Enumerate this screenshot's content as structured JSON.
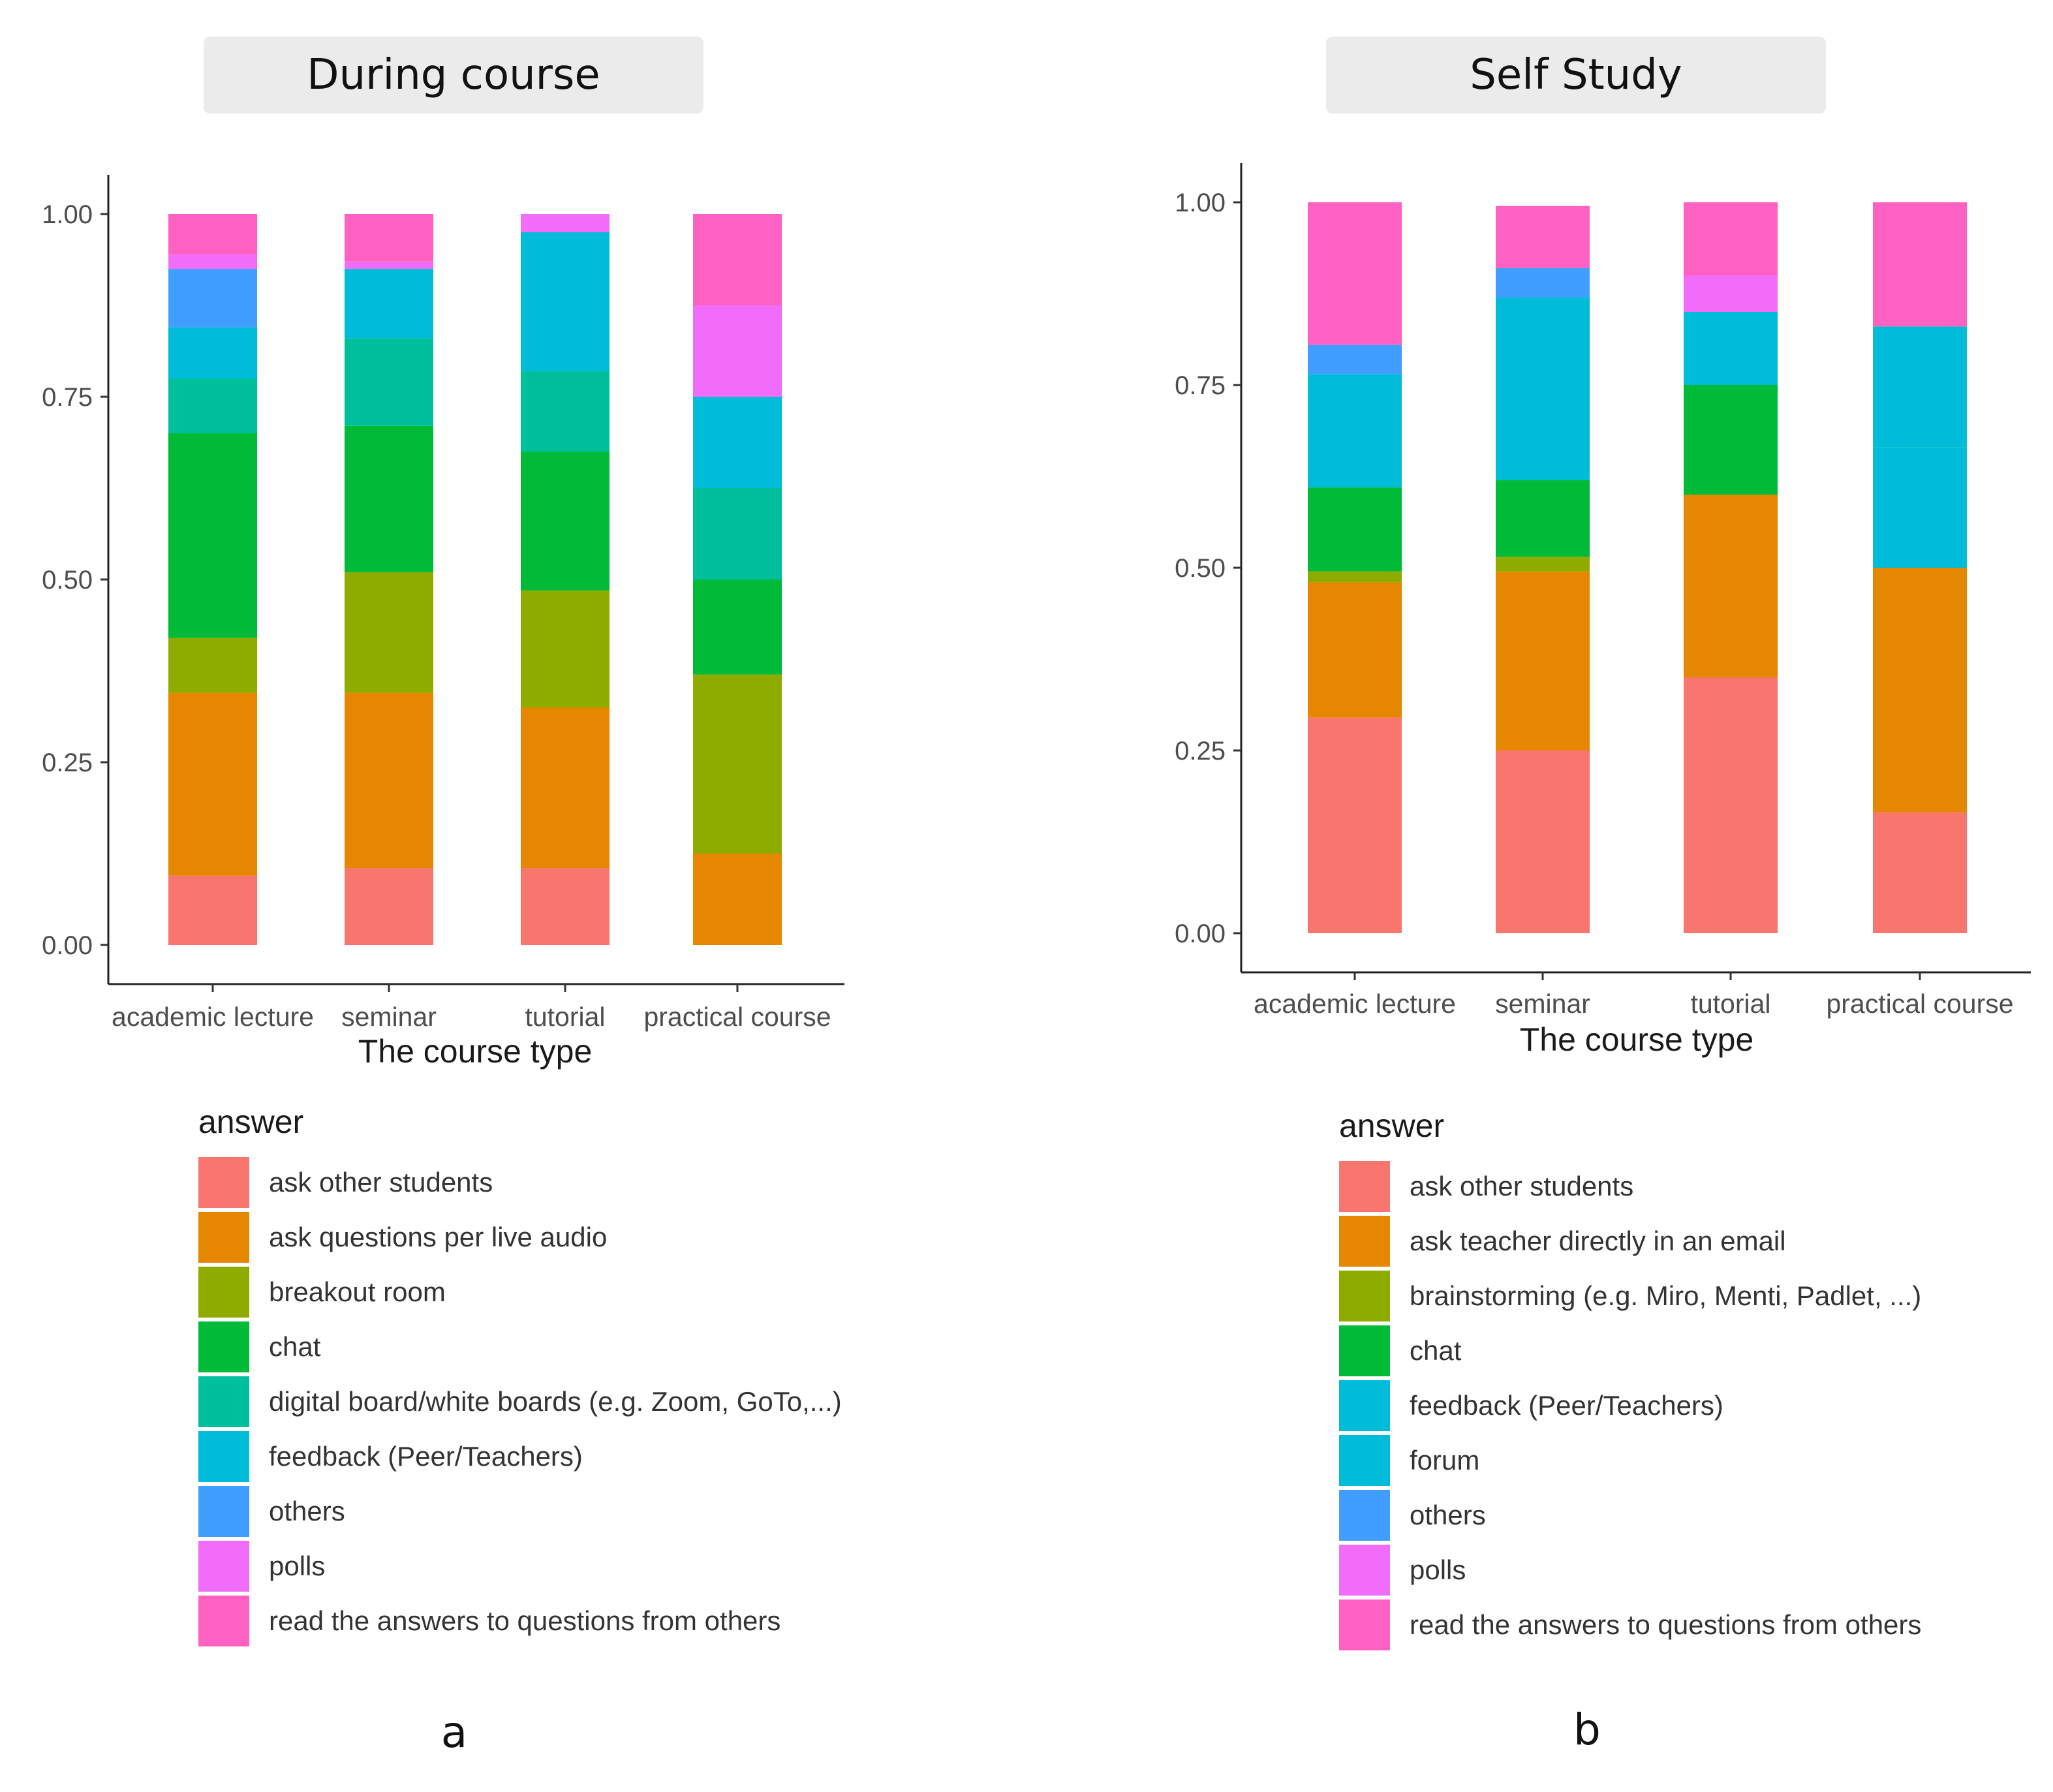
{
  "colors": {
    "ask other students": "#F8766D",
    "ask questions per live audio": "#E58700",
    "ask teacher directly in an email": "#E58700",
    "breakout room": "#8EAB00",
    "brainstorming (e.g. Miro, Menti, Padlet, ...)": "#8EAB00",
    "chat": "#00BA38",
    "digital board/white boards (e.g. Zoom, GoTo,...)": "#00BF9C",
    "feedback (Peer/Teachers)": "#00BCD8",
    "forum": "#00BCD8",
    "others": "#3F9EFF",
    "polls": "#F16CF9",
    "read the answers to questions from others": "#FF61C3"
  },
  "chart_data": [
    {
      "type": "bar",
      "stacked": true,
      "panel_title": "During course",
      "panel_letter": "a",
      "xlabel": "The course type",
      "ylabel": "",
      "ylim": [
        0,
        1
      ],
      "yticks": [
        "0.00",
        "0.25",
        "0.50",
        "0.75",
        "1.00"
      ],
      "categories": [
        "academic lecture",
        "seminar",
        "tutorial",
        "practical course"
      ],
      "legend_title": "answer",
      "legend_position": "bottom-left",
      "grid": false,
      "series": [
        {
          "name": "ask other students",
          "values": [
            0.095,
            0.105,
            0.105,
            0.0
          ]
        },
        {
          "name": "ask questions per live audio",
          "values": [
            0.25,
            0.24,
            0.22,
            0.125
          ]
        },
        {
          "name": "breakout room",
          "values": [
            0.075,
            0.165,
            0.16,
            0.245
          ]
        },
        {
          "name": "chat",
          "values": [
            0.28,
            0.2,
            0.19,
            0.13
          ]
        },
        {
          "name": "digital board/white boards (e.g. Zoom, GoTo,...)",
          "values": [
            0.075,
            0.12,
            0.11,
            0.125
          ]
        },
        {
          "name": "feedback (Peer/Teachers)",
          "values": [
            0.07,
            0.095,
            0.19,
            0.125
          ]
        },
        {
          "name": "others",
          "values": [
            0.08,
            0.0,
            0.0,
            0.0
          ]
        },
        {
          "name": "polls",
          "values": [
            0.02,
            0.01,
            0.025,
            0.125
          ]
        },
        {
          "name": "read the answers to questions from others",
          "values": [
            0.055,
            0.065,
            0.0,
            0.125
          ]
        }
      ]
    },
    {
      "type": "bar",
      "stacked": true,
      "panel_title": "Self Study",
      "panel_letter": "b",
      "xlabel": "The course type",
      "ylabel": "",
      "ylim": [
        0,
        1
      ],
      "yticks": [
        "0.00",
        "0.25",
        "0.50",
        "0.75",
        "1.00"
      ],
      "categories": [
        "academic lecture",
        "seminar",
        "tutorial",
        "practical course"
      ],
      "legend_title": "answer",
      "legend_position": "bottom-left",
      "grid": false,
      "series": [
        {
          "name": "ask other students",
          "values": [
            0.295,
            0.25,
            0.35,
            0.165
          ]
        },
        {
          "name": "ask teacher directly in an email",
          "values": [
            0.185,
            0.245,
            0.25,
            0.335
          ]
        },
        {
          "name": "brainstorming (e.g. Miro, Menti, Padlet, ...)",
          "values": [
            0.015,
            0.02,
            0.0,
            0.0
          ]
        },
        {
          "name": "chat",
          "values": [
            0.115,
            0.105,
            0.15,
            0.0
          ]
        },
        {
          "name": "feedback (Peer/Teachers)",
          "values": [
            0.015,
            0.105,
            0.05,
            0.165
          ]
        },
        {
          "name": "forum",
          "values": [
            0.14,
            0.145,
            0.05,
            0.165
          ]
        },
        {
          "name": "others",
          "values": [
            0.04,
            0.04,
            0.0,
            0.0
          ]
        },
        {
          "name": "polls",
          "values": [
            0.0,
            0.0,
            0.05,
            0.0
          ]
        },
        {
          "name": "read the answers to questions from others",
          "values": [
            0.195,
            0.085,
            0.1,
            0.17
          ]
        }
      ]
    }
  ]
}
